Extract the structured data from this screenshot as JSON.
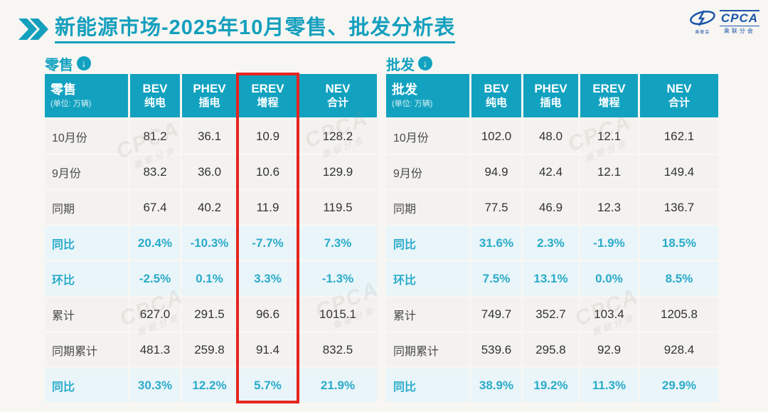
{
  "page": {
    "title": "新能源市场-2025年10月零售、批发分析表"
  },
  "logo": {
    "name": "CPCA",
    "subtitle": "乘联分会",
    "swoosh_caption": "乘联会"
  },
  "watermark": {
    "line1": "CPCA",
    "line2": "乘联分会"
  },
  "colors": {
    "accent_teal": "#12a2c0",
    "percent_text": "#2aabca",
    "highlight_red": "#e5251f",
    "logo_blue": "#1c55a8",
    "number_row_bg": "#f3f2ef",
    "percent_row_bg": "#e9f5f9"
  },
  "tables": [
    {
      "section_label": "零售",
      "corner_label": "零售",
      "corner_unit": "(单位: 万辆)",
      "columns": [
        {
          "abbr": "BEV",
          "cn": "纯电"
        },
        {
          "abbr": "PHEV",
          "cn": "插电"
        },
        {
          "abbr": "EREV",
          "cn": "增程"
        },
        {
          "abbr": "NEV",
          "cn": "合计"
        }
      ],
      "rows": [
        {
          "label": "10月份",
          "type": "num",
          "values": [
            "81.2",
            "36.1",
            "10.9",
            "128.2"
          ]
        },
        {
          "label": "9月份",
          "type": "num",
          "values": [
            "83.2",
            "36.0",
            "10.6",
            "129.9"
          ]
        },
        {
          "label": "同期",
          "type": "num",
          "values": [
            "67.4",
            "40.2",
            "11.9",
            "119.5"
          ]
        },
        {
          "label": "同比",
          "type": "pct",
          "values": [
            "20.4%",
            "-10.3%",
            "-7.7%",
            "7.3%"
          ]
        },
        {
          "label": "环比",
          "type": "pct",
          "values": [
            "-2.5%",
            "0.1%",
            "3.3%",
            "-1.3%"
          ]
        },
        {
          "label": "累计",
          "type": "num",
          "values": [
            "627.0",
            "291.5",
            "96.6",
            "1015.1"
          ]
        },
        {
          "label": "同期累计",
          "type": "num",
          "values": [
            "481.3",
            "259.8",
            "91.4",
            "832.5"
          ]
        },
        {
          "label": "同比",
          "type": "pct",
          "values": [
            "30.3%",
            "12.2%",
            "5.7%",
            "21.9%"
          ]
        }
      ]
    },
    {
      "section_label": "批发",
      "corner_label": "批发",
      "corner_unit": "(单位: 万辆)",
      "columns": [
        {
          "abbr": "BEV",
          "cn": "纯电"
        },
        {
          "abbr": "PHEV",
          "cn": "插电"
        },
        {
          "abbr": "EREV",
          "cn": "增程"
        },
        {
          "abbr": "NEV",
          "cn": "合计"
        }
      ],
      "rows": [
        {
          "label": "10月份",
          "type": "num",
          "values": [
            "102.0",
            "48.0",
            "12.1",
            "162.1"
          ]
        },
        {
          "label": "9月份",
          "type": "num",
          "values": [
            "94.9",
            "42.4",
            "12.1",
            "149.4"
          ]
        },
        {
          "label": "同期",
          "type": "num",
          "values": [
            "77.5",
            "46.9",
            "12.3",
            "136.7"
          ]
        },
        {
          "label": "同比",
          "type": "pct",
          "values": [
            "31.6%",
            "2.3%",
            "-1.9%",
            "18.5%"
          ]
        },
        {
          "label": "环比",
          "type": "pct",
          "values": [
            "7.5%",
            "13.1%",
            "0.0%",
            "8.5%"
          ]
        },
        {
          "label": "累计",
          "type": "num",
          "values": [
            "749.7",
            "352.7",
            "103.4",
            "1205.8"
          ]
        },
        {
          "label": "同期累计",
          "type": "num",
          "values": [
            "539.6",
            "295.8",
            "92.9",
            "928.4"
          ]
        },
        {
          "label": "同比",
          "type": "pct",
          "values": [
            "38.9%",
            "19.2%",
            "11.3%",
            "29.9%"
          ]
        }
      ]
    }
  ],
  "chart_data": [
    {
      "type": "table",
      "title": "零售 (单位: 万辆)",
      "columns": [
        "",
        "BEV 纯电",
        "PHEV 插电",
        "EREV 增程",
        "NEV 合计"
      ],
      "rows": [
        [
          "10月份",
          "81.2",
          "36.1",
          "10.9",
          "128.2"
        ],
        [
          "9月份",
          "83.2",
          "36.0",
          "10.6",
          "129.9"
        ],
        [
          "同期",
          "67.4",
          "40.2",
          "11.9",
          "119.5"
        ],
        [
          "同比",
          "20.4%",
          "-10.3%",
          "-7.7%",
          "7.3%"
        ],
        [
          "环比",
          "-2.5%",
          "0.1%",
          "3.3%",
          "-1.3%"
        ],
        [
          "累计",
          "627.0",
          "291.5",
          "96.6",
          "1015.1"
        ],
        [
          "同期累计",
          "481.3",
          "259.8",
          "91.4",
          "832.5"
        ],
        [
          "同比",
          "30.3%",
          "12.2%",
          "5.7%",
          "21.9%"
        ]
      ],
      "highlight": "EREV 增程 column outlined in red"
    },
    {
      "type": "table",
      "title": "批发 (单位: 万辆)",
      "columns": [
        "",
        "BEV 纯电",
        "PHEV 插电",
        "EREV 增程",
        "NEV 合计"
      ],
      "rows": [
        [
          "10月份",
          "102.0",
          "48.0",
          "12.1",
          "162.1"
        ],
        [
          "9月份",
          "94.9",
          "42.4",
          "12.1",
          "149.4"
        ],
        [
          "同期",
          "77.5",
          "46.9",
          "12.3",
          "136.7"
        ],
        [
          "同比",
          "31.6%",
          "2.3%",
          "-1.9%",
          "18.5%"
        ],
        [
          "环比",
          "7.5%",
          "13.1%",
          "0.0%",
          "8.5%"
        ],
        [
          "累计",
          "749.7",
          "352.7",
          "103.4",
          "1205.8"
        ],
        [
          "同期累计",
          "539.6",
          "295.8",
          "92.9",
          "928.4"
        ],
        [
          "同比",
          "38.9%",
          "19.2%",
          "11.3%",
          "29.9%"
        ]
      ],
      "highlight": "none"
    }
  ]
}
